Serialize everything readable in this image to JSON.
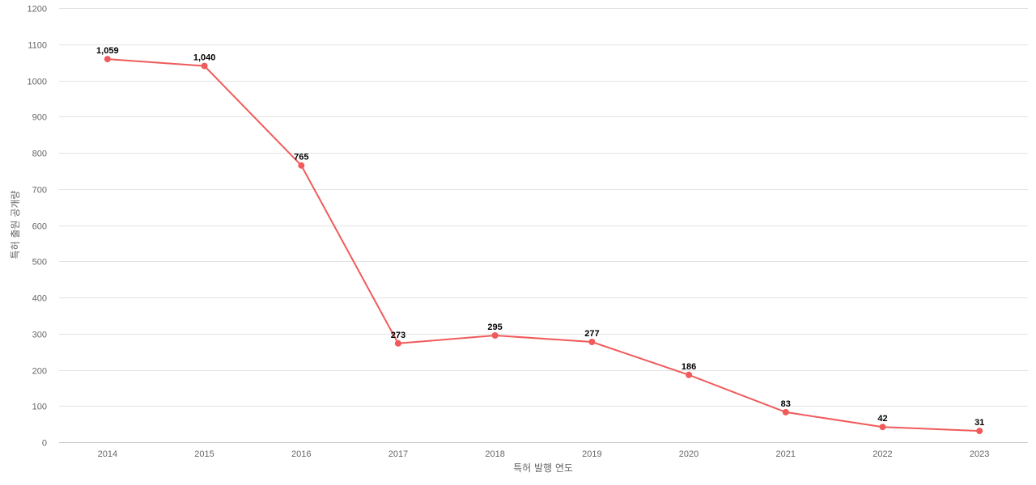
{
  "chart_data": {
    "type": "line",
    "title": "",
    "xlabel": "특허 발행 연도",
    "ylabel": "특허 출원 공개량",
    "categories": [
      "2014",
      "2015",
      "2016",
      "2017",
      "2018",
      "2019",
      "2020",
      "2021",
      "2022",
      "2023"
    ],
    "series": [
      {
        "name": "",
        "values": [
          1059,
          1040,
          765,
          273,
          295,
          277,
          186,
          83,
          42,
          31
        ],
        "labels": [
          "1,059",
          "1,040",
          "765",
          "273",
          "295",
          "277",
          "186",
          "83",
          "42",
          "31"
        ],
        "color": "#f05a5a"
      }
    ],
    "ylim": [
      0,
      1200
    ],
    "yticks": [
      0,
      100,
      200,
      300,
      400,
      500,
      600,
      700,
      800,
      900,
      1000,
      1100,
      1200
    ],
    "grid": true,
    "legend": "none"
  }
}
